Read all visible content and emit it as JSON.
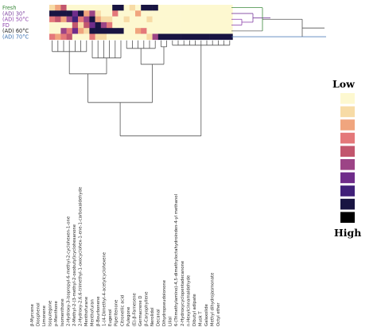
{
  "chart_data": {
    "type": "heatmap",
    "title": "",
    "rows": [
      {
        "label": "Fresh",
        "color": "#3c8a3c"
      },
      {
        "label": "(AD) 30°",
        "color": "#7b3f9e"
      },
      {
        "label": "(AD) 50°C",
        "color": "#8e44ad"
      },
      {
        "label": "FD",
        "color": "#8e44ad"
      },
      {
        "label": "(AD) 60°C",
        "color": "#222222"
      },
      {
        "label": "(AD) 70°C",
        "color": "#3a6fb0"
      }
    ],
    "columns": [
      "β-Myrcene",
      "Diosphenol",
      "Limonene",
      "Isopulegone",
      "p-Menthone",
      "Isomenthone",
      "2-Hydroxy-3-isopropyl-6-methyl-2-cyclohexen-1-one",
      "2-Methyl-2-(3-methyl-2-oxobutyl)cyclohexanone",
      "2-Hydroxy-2,6,6-trimethyl-1-oxocyclohex-1-ene-1-carboxaldehyde",
      "Menthofurane",
      "Menthofuran",
      "β-Bourbonene",
      "1-(4-Dimethyl-4-acetylcyclohexene",
      "Eugenol",
      "Piperitenone",
      "Citronellic acid",
      "Pulegone",
      "(E)-β-Farnesene",
      "Germacrene D",
      "β-Caryophyllene",
      "Nerolidol",
      "Decanal",
      "Dihydropseudoionone",
      "Lilial",
      "6-(Trimethylamino)-4,5-dimethyloctahydroinden-4-yl methanol",
      "2-Hydroxycyclopentadecanone",
      "n-Hexylcinnamaldehyde",
      "Dibutyl adipate",
      "Musk T",
      "Galaxolide",
      "Methyl dihydrojasmonate",
      "Octyl ether"
    ],
    "values": [
      [
        2,
        3,
        5,
        1,
        1,
        1,
        1,
        1,
        1,
        1,
        1,
        9,
        9,
        1,
        2,
        1,
        9,
        9,
        9,
        1,
        1,
        1,
        1,
        1,
        1,
        1,
        1,
        1,
        1,
        1,
        1,
        1
      ],
      [
        9,
        9,
        9,
        9,
        7,
        9,
        3,
        6,
        2,
        1,
        1,
        4,
        1,
        1,
        1,
        3,
        1,
        1,
        1,
        1,
        1,
        1,
        1,
        1,
        1,
        1,
        1,
        1,
        1,
        1,
        1,
        1
      ],
      [
        4,
        5,
        3,
        6,
        8,
        4,
        6,
        9,
        3,
        2,
        2,
        1,
        1,
        2,
        1,
        1,
        1,
        2,
        1,
        1,
        1,
        1,
        1,
        1,
        1,
        1,
        1,
        1,
        1,
        1,
        1,
        1
      ],
      [
        1,
        1,
        1,
        1,
        5,
        2,
        5,
        7,
        9,
        6,
        4,
        1,
        1,
        1,
        1,
        1,
        1,
        1,
        1,
        1,
        1,
        1,
        1,
        1,
        1,
        1,
        1,
        1,
        1,
        1,
        1,
        1
      ],
      [
        1,
        1,
        6,
        4,
        7,
        3,
        2,
        9,
        9,
        9,
        9,
        9,
        9,
        1,
        1,
        3,
        4,
        1,
        1,
        1,
        1,
        1,
        1,
        1,
        1,
        1,
        1,
        1,
        1,
        1,
        1,
        1
      ],
      [
        4,
        3,
        4,
        5,
        1,
        1,
        1,
        4,
        2,
        2,
        1,
        1,
        1,
        1,
        1,
        1,
        1,
        2,
        6,
        9,
        9,
        9,
        9,
        9,
        9,
        9,
        9,
        9,
        9,
        9,
        9,
        9
      ]
    ],
    "color_scale": {
      "low_label": "Low",
      "high_label": "High",
      "colors": [
        "#fdf8d0",
        "#f7dba6",
        "#f0a57e",
        "#e4787a",
        "#c2566e",
        "#9c4486",
        "#6f2c8a",
        "#402079",
        "#181442",
        "#000000"
      ]
    },
    "dendrogram": {
      "rows": true,
      "columns": true
    }
  }
}
